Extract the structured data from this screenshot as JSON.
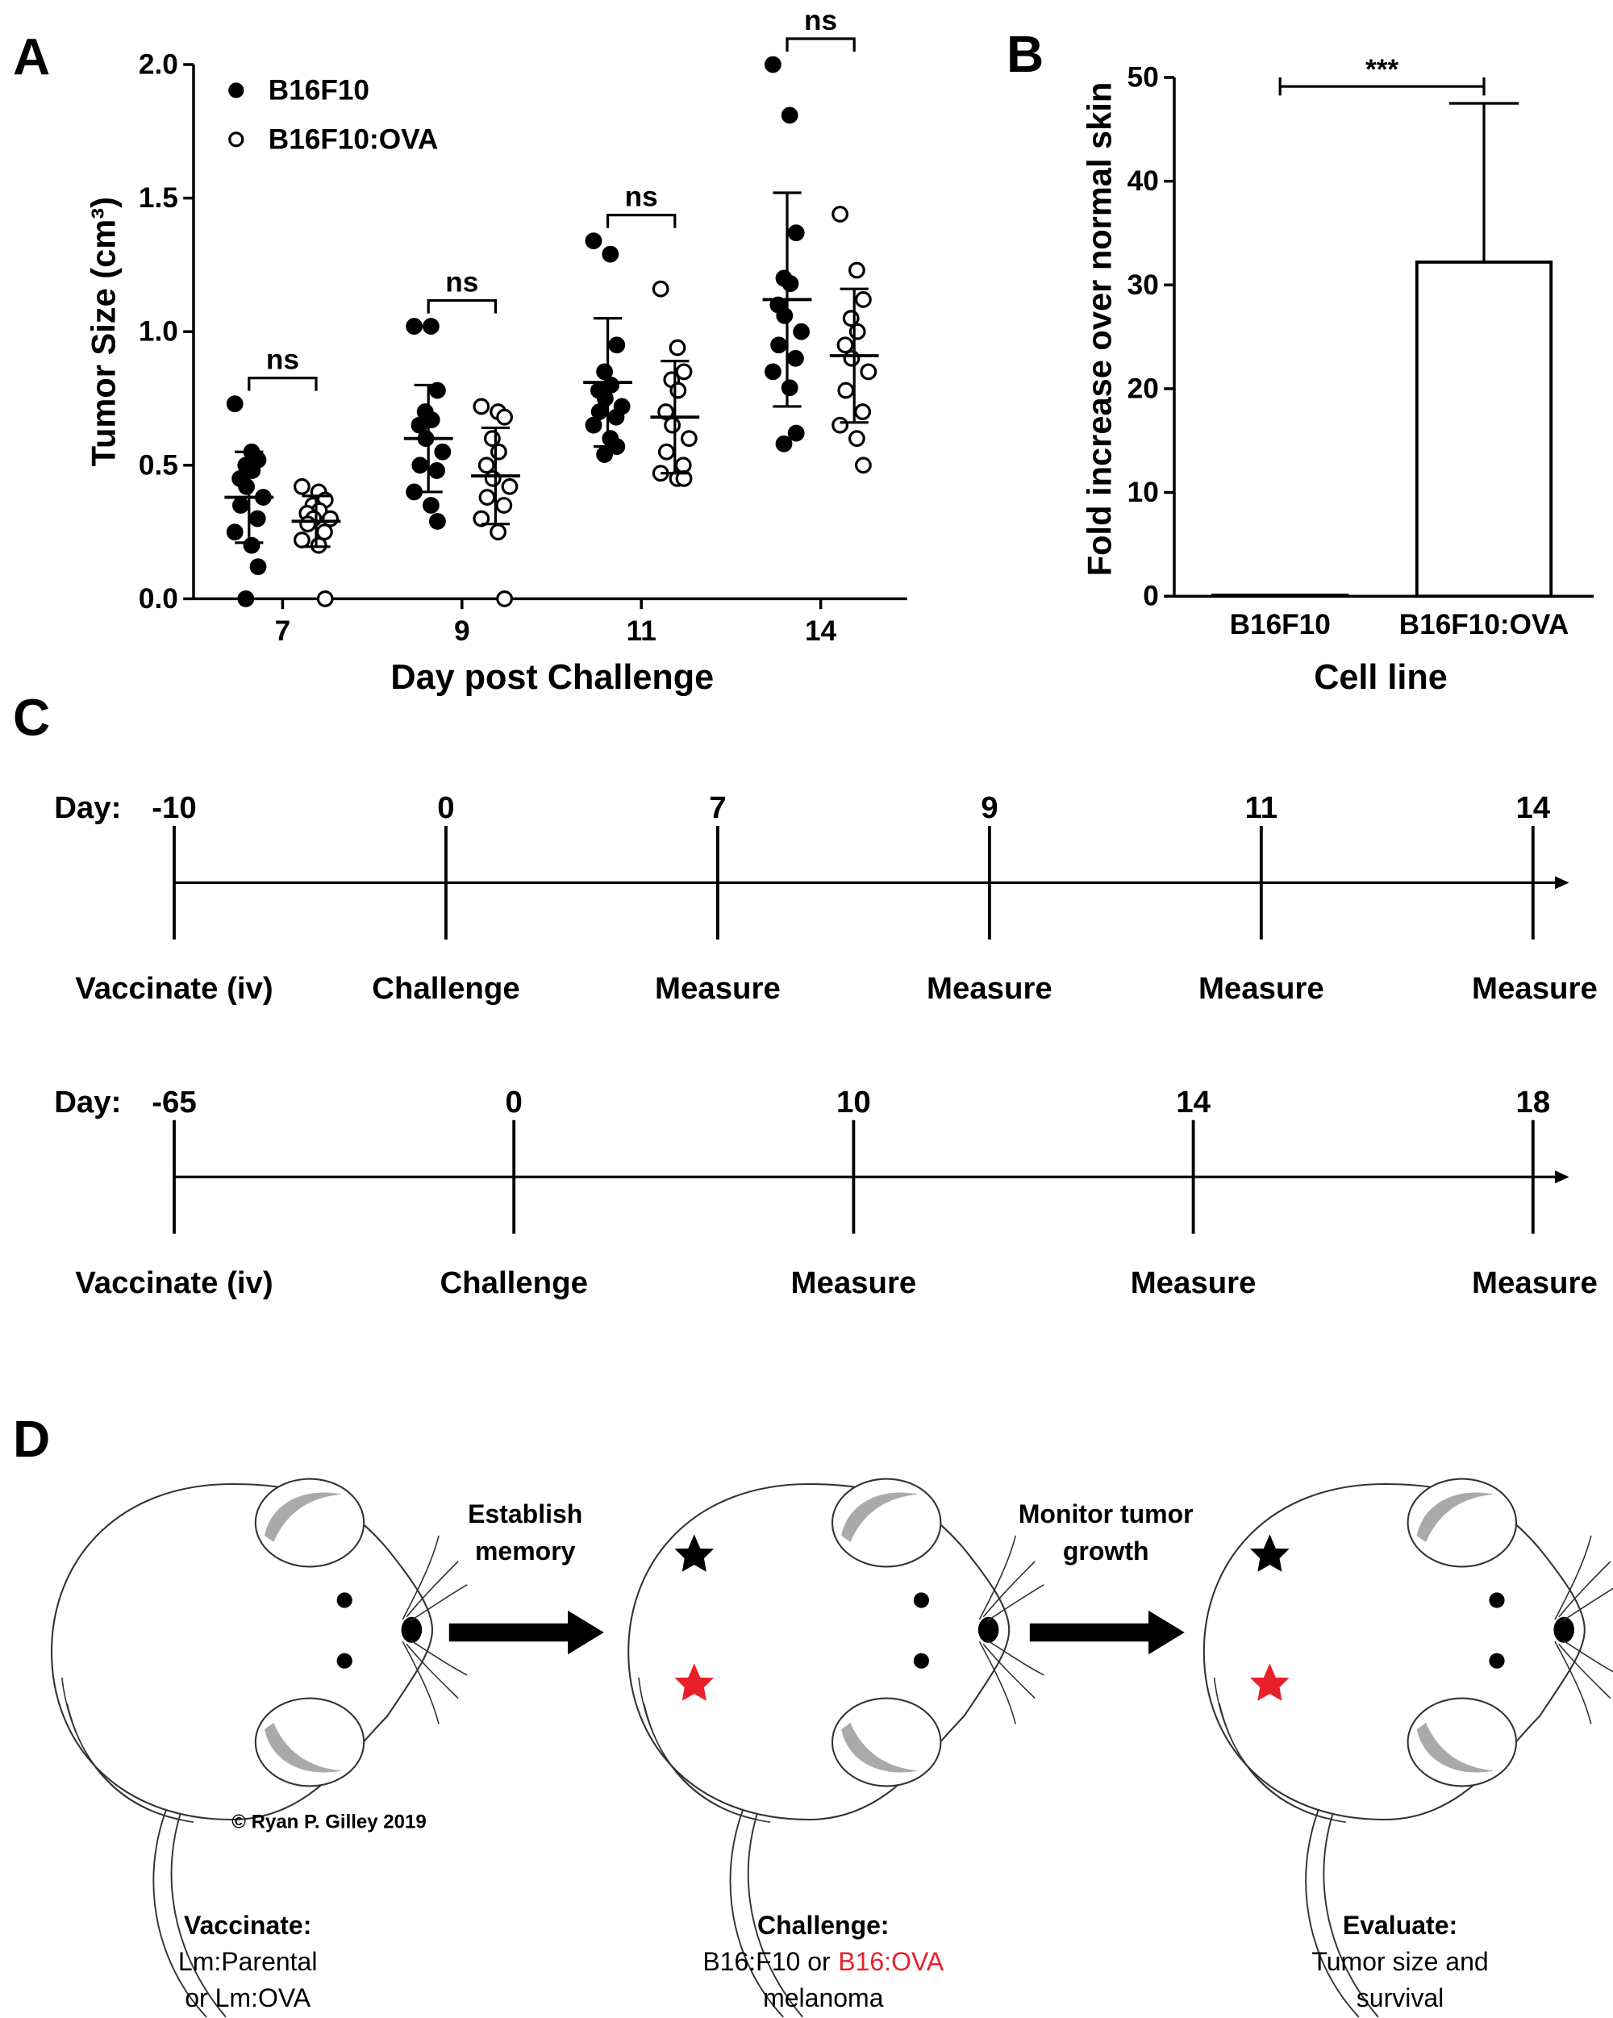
{
  "chart_data": [
    {
      "type": "strip",
      "panel": "A",
      "ylabel": "Tumor Size (cm³)",
      "xlabel": "Day post Challenge",
      "categories": [
        "7",
        "9",
        "11",
        "14"
      ],
      "ylim": [
        0,
        2
      ],
      "yticks": [
        {
          "value": 0,
          "label": "0.0"
        },
        {
          "value": 0.5,
          "label": "0.5"
        },
        {
          "value": 1,
          "label": "1.0"
        },
        {
          "value": 1.5,
          "label": "1.5"
        },
        {
          "value": 2,
          "label": "2.0"
        }
      ],
      "legend": "upper left",
      "series": [
        {
          "name": "B16F10",
          "color": "#000000",
          "marker": "filled",
          "values": [
            [
              0.73,
              0.55,
              0.52,
              0.5,
              0.48,
              0.45,
              0.42,
              0.38,
              0.35,
              0.3,
              0.25,
              0.2,
              0.12,
              0.0
            ],
            [
              1.02,
              1.02,
              0.78,
              0.7,
              0.67,
              0.65,
              0.6,
              0.55,
              0.5,
              0.48,
              0.4,
              0.35,
              0.29
            ],
            [
              1.34,
              1.29,
              0.95,
              0.85,
              0.8,
              0.78,
              0.75,
              0.72,
              0.7,
              0.68,
              0.65,
              0.6,
              0.57,
              0.54
            ],
            [
              2.0,
              1.81,
              1.37,
              1.2,
              1.18,
              1.1,
              1.06,
              1.0,
              0.95,
              0.9,
              0.85,
              0.79,
              0.62,
              0.58
            ]
          ],
          "means": [
            0.38,
            0.6,
            0.81,
            1.12
          ],
          "sds": [
            0.17,
            0.2,
            0.24,
            0.4
          ]
        },
        {
          "name": "B16F10:OVA",
          "color": "#000000",
          "marker": "open",
          "values": [
            [
              0.42,
              0.4,
              0.37,
              0.35,
              0.33,
              0.32,
              0.3,
              0.3,
              0.28,
              0.25,
              0.22,
              0.2,
              0.0
            ],
            [
              0.72,
              0.7,
              0.68,
              0.6,
              0.55,
              0.5,
              0.45,
              0.42,
              0.38,
              0.35,
              0.3,
              0.25,
              0.0
            ],
            [
              1.16,
              0.94,
              0.85,
              0.82,
              0.78,
              0.7,
              0.65,
              0.6,
              0.55,
              0.5,
              0.47,
              0.45,
              0.45
            ],
            [
              1.44,
              1.23,
              1.12,
              1.05,
              1.0,
              0.95,
              0.9,
              0.85,
              0.78,
              0.7,
              0.65,
              0.6,
              0.5
            ]
          ],
          "means": [
            0.29,
            0.46,
            0.68,
            0.91
          ],
          "sds": [
            0.095,
            0.18,
            0.21,
            0.25
          ]
        }
      ],
      "significance": [
        "ns",
        "ns",
        "ns",
        "ns"
      ]
    },
    {
      "type": "bar",
      "panel": "B",
      "ylabel": "Fold increase over normal skin",
      "xlabel": "Cell line",
      "categories": [
        "B16F10",
        "B16F10:OVA"
      ],
      "values": [
        0.1,
        32.2
      ],
      "errors": [
        0,
        15.3
      ],
      "color": "#ffffff",
      "edgecolor": "#000000",
      "ylim": [
        0,
        50
      ],
      "yticks": [
        0,
        10,
        20,
        30,
        40,
        50
      ],
      "significance": "***"
    }
  ],
  "timeline": {
    "panel": "C",
    "rows": [
      {
        "day_label": "Day:",
        "points": [
          {
            "day": "-10",
            "event": "Vaccinate (iv)"
          },
          {
            "day": "0",
            "event": "Challenge"
          },
          {
            "day": "7",
            "event": "Measure"
          },
          {
            "day": "9",
            "event": "Measure"
          },
          {
            "day": "11",
            "event": "Measure"
          },
          {
            "day": "14",
            "event": "Measure"
          }
        ]
      },
      {
        "day_label": "Day:",
        "points": [
          {
            "day": "-65",
            "event": "Vaccinate (iv)"
          },
          {
            "day": "0",
            "event": "Challenge"
          },
          {
            "day": "10",
            "event": "Measure"
          },
          {
            "day": "14",
            "event": "Measure"
          },
          {
            "day": "18",
            "event": "Measure"
          }
        ]
      }
    ]
  },
  "schematic": {
    "panel": "D",
    "copyright": "© Ryan P. Gilley 2019",
    "transitions": [
      [
        "Establish",
        "memory"
      ],
      [
        "Monitor tumor",
        "growth"
      ]
    ],
    "steps": [
      {
        "title": "Vaccinate:",
        "lines": [
          [
            {
              "text": "Lm:Parental"
            }
          ],
          [
            {
              "text": "or Lm:OVA"
            }
          ]
        ]
      },
      {
        "title": "Challenge:",
        "lines": [
          [
            {
              "text": "B16:F10 or"
            },
            {
              "text": "B16:OVA",
              "color": "#e8202a"
            }
          ],
          [
            {
              "text": "melanoma"
            }
          ]
        ]
      },
      {
        "title": "Evaluate:",
        "lines": [
          [
            {
              "text": "Tumor size and"
            }
          ],
          [
            {
              "text": "survival"
            }
          ]
        ]
      }
    ]
  }
}
